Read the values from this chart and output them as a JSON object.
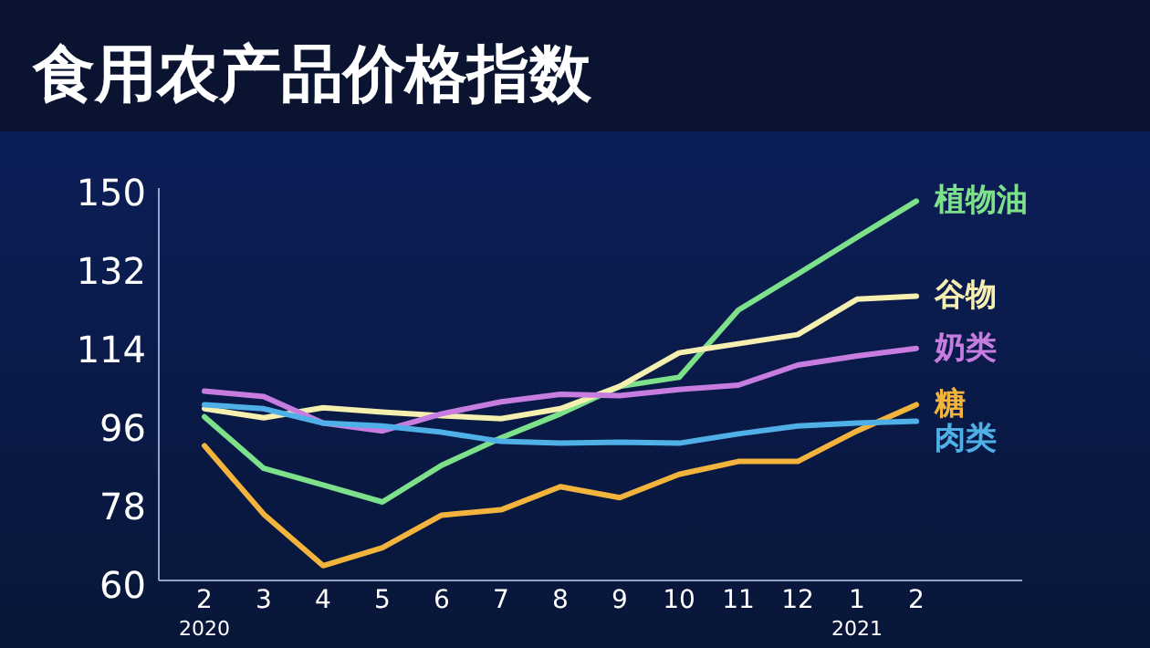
{
  "chart_data": {
    "type": "line",
    "title": "食用农产品价格指数",
    "categories": [
      "2$_{2020}$",
      "3",
      "4",
      "5",
      "6",
      "7",
      "8",
      "9",
      "10",
      "11",
      "12",
      "1$_{2021}$",
      "2"
    ],
    "ylim": [
      60,
      150
    ],
    "yticks": [
      60,
      78,
      96,
      114,
      132,
      150
    ],
    "grid": false,
    "series": [
      {
        "name": "植物油",
        "color": "#7de08a",
        "values": [
          97.5,
          85.7,
          81.9,
          78,
          86.4,
          92.7,
          98.2,
          104.5,
          106.6,
          122,
          130.3,
          138.7,
          147
        ]
      },
      {
        "name": "谷物",
        "color": "#f5efb0",
        "values": [
          99.4,
          97.3,
          99.6,
          98.6,
          97.8,
          97.1,
          99.4,
          104.5,
          112.2,
          114.3,
          116.4,
          124.5,
          125.2
        ]
      },
      {
        "name": "奶类",
        "color": "#c77de0",
        "values": [
          103.4,
          102.2,
          96.1,
          94.3,
          98.2,
          101,
          102.7,
          102.4,
          103.8,
          104.8,
          109.4,
          111.5,
          113.2
        ]
      },
      {
        "name": "糖",
        "color": "#f2b43c",
        "values": [
          90.9,
          75.2,
          63.4,
          67.5,
          75,
          76.2,
          81.5,
          79,
          84.3,
          87.3,
          87.3,
          94.3,
          100.3
        ]
      },
      {
        "name": "肉类",
        "color": "#4fb0e8",
        "values": [
          100.3,
          99.4,
          96.1,
          95.4,
          94,
          91.9,
          91.5,
          91.7,
          91.5,
          93.6,
          95.4,
          96.1,
          96.5
        ]
      }
    ]
  }
}
